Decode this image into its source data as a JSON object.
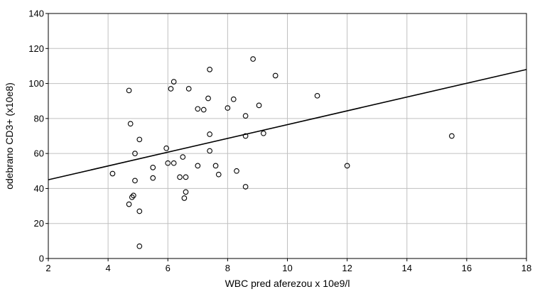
{
  "chart_data": {
    "type": "scatter",
    "title": "",
    "xlabel": "WBC pred aferezou x 10e9/l",
    "ylabel": "odebrano CD3+ (x10e8)",
    "xlim": [
      2,
      18
    ],
    "ylim": [
      0,
      140
    ],
    "x_ticks": [
      2,
      4,
      6,
      8,
      10,
      12,
      14,
      16,
      18
    ],
    "y_ticks": [
      0,
      20,
      40,
      60,
      80,
      100,
      120,
      140
    ],
    "grid": true,
    "legend": "none",
    "colors": {
      "grid": "#c0c0c0",
      "axis": "#000000",
      "marker": "#000000",
      "fit_line": "#000000"
    },
    "points": [
      {
        "x": 4.15,
        "y": 48.5
      },
      {
        "x": 4.7,
        "y": 96
      },
      {
        "x": 4.75,
        "y": 77
      },
      {
        "x": 4.7,
        "y": 31
      },
      {
        "x": 4.8,
        "y": 35
      },
      {
        "x": 4.85,
        "y": 36
      },
      {
        "x": 4.9,
        "y": 60
      },
      {
        "x": 4.9,
        "y": 44.5
      },
      {
        "x": 5.05,
        "y": 68
      },
      {
        "x": 5.05,
        "y": 27
      },
      {
        "x": 5.05,
        "y": 7
      },
      {
        "x": 5.5,
        "y": 52
      },
      {
        "x": 5.5,
        "y": 46
      },
      {
        "x": 5.95,
        "y": 63
      },
      {
        "x": 6.0,
        "y": 54.5
      },
      {
        "x": 6.1,
        "y": 97
      },
      {
        "x": 6.2,
        "y": 101
      },
      {
        "x": 6.2,
        "y": 54.5
      },
      {
        "x": 6.4,
        "y": 46.5
      },
      {
        "x": 6.5,
        "y": 58
      },
      {
        "x": 6.55,
        "y": 34.5
      },
      {
        "x": 6.6,
        "y": 38
      },
      {
        "x": 6.6,
        "y": 46.5
      },
      {
        "x": 6.7,
        "y": 97
      },
      {
        "x": 7.0,
        "y": 85.5
      },
      {
        "x": 7.0,
        "y": 53
      },
      {
        "x": 7.2,
        "y": 85
      },
      {
        "x": 7.35,
        "y": 91.5
      },
      {
        "x": 7.4,
        "y": 108
      },
      {
        "x": 7.4,
        "y": 71
      },
      {
        "x": 7.4,
        "y": 61.5
      },
      {
        "x": 7.6,
        "y": 53
      },
      {
        "x": 7.7,
        "y": 48
      },
      {
        "x": 8.0,
        "y": 86
      },
      {
        "x": 8.2,
        "y": 91
      },
      {
        "x": 8.3,
        "y": 50
      },
      {
        "x": 8.6,
        "y": 81.5
      },
      {
        "x": 8.6,
        "y": 70
      },
      {
        "x": 8.6,
        "y": 41
      },
      {
        "x": 8.85,
        "y": 114
      },
      {
        "x": 9.05,
        "y": 87.5
      },
      {
        "x": 9.2,
        "y": 71.5
      },
      {
        "x": 9.6,
        "y": 104.5
      },
      {
        "x": 11.0,
        "y": 93
      },
      {
        "x": 12.0,
        "y": 53
      },
      {
        "x": 15.5,
        "y": 70
      }
    ],
    "fit_line": {
      "x": [
        2,
        18
      ],
      "y": [
        45,
        108
      ]
    }
  }
}
